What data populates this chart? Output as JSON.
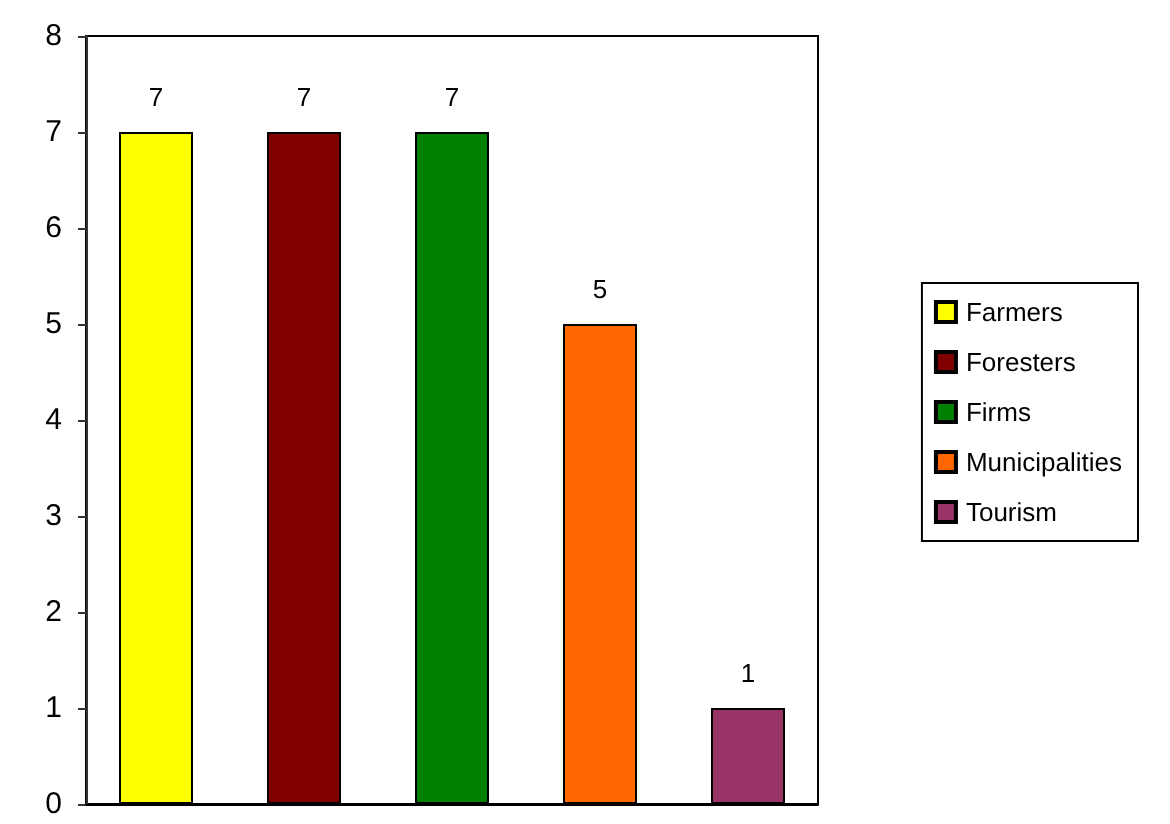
{
  "chart_data": {
    "type": "bar",
    "categories": [
      null
    ],
    "series": [
      {
        "name": "Farmers",
        "color": "#ffff00",
        "values": [
          7
        ]
      },
      {
        "name": "Foresters",
        "color": "#800000",
        "values": [
          7
        ]
      },
      {
        "name": "Firms",
        "color": "#008000",
        "values": [
          7
        ]
      },
      {
        "name": "Municipalities",
        "color": "#ff6600",
        "values": [
          5
        ]
      },
      {
        "name": "Tourism",
        "color": "#993366",
        "values": [
          1
        ]
      }
    ],
    "ylim": [
      0,
      8
    ],
    "yticks": [
      0,
      1,
      2,
      3,
      4,
      5,
      6,
      7,
      8
    ],
    "data_labels": true,
    "legend": "right",
    "tick_labels": "y"
  }
}
